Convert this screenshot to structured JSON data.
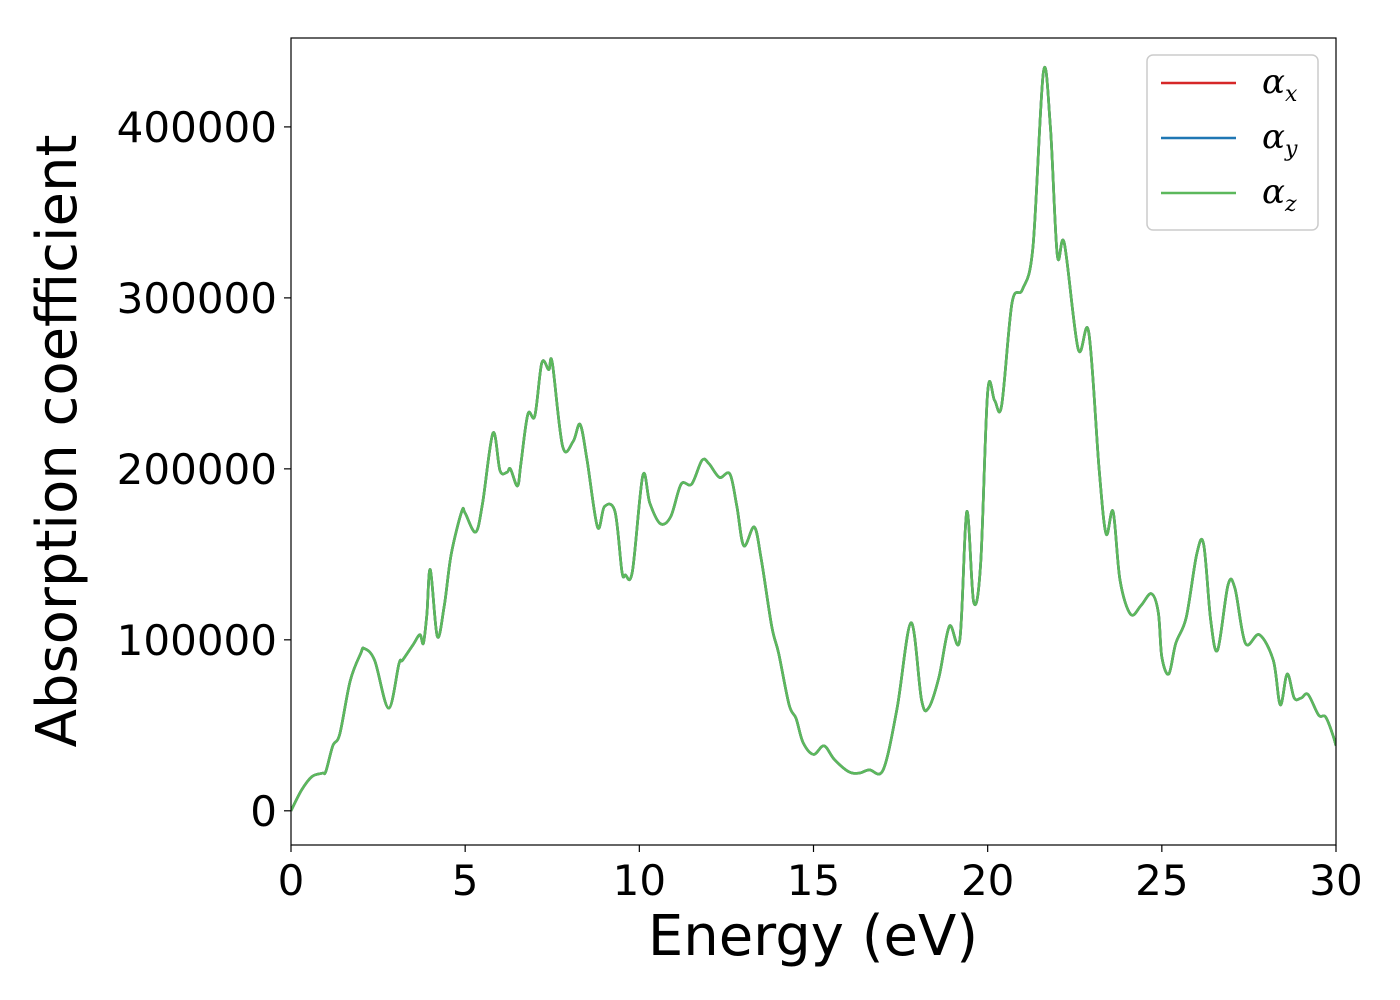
{
  "chart_data": {
    "type": "line",
    "title": "",
    "xlabel": "Energy (eV)",
    "ylabel": "Absorption coefficient",
    "xlim": [
      0,
      30
    ],
    "ylim": [
      -20000,
      452000
    ],
    "xticks": [
      0,
      5,
      10,
      15,
      20,
      25,
      30
    ],
    "xtick_labels": [
      "0",
      "5",
      "10",
      "15",
      "20",
      "25",
      "30"
    ],
    "yticks": [
      0,
      100000,
      200000,
      300000,
      400000
    ],
    "ytick_labels": [
      "0",
      "100000",
      "200000",
      "300000",
      "400000"
    ],
    "grid": false,
    "legend_position": "top-right",
    "x": [
      0,
      0.3,
      0.6,
      0.9,
      1.0,
      1.2,
      1.4,
      1.7,
      2.0,
      2.1,
      2.4,
      2.8,
      3.1,
      3.2,
      3.5,
      3.7,
      3.8,
      3.9,
      4.0,
      4.2,
      4.4,
      4.6,
      4.9,
      5.0,
      5.3,
      5.5,
      5.8,
      6.0,
      6.2,
      6.3,
      6.5,
      6.6,
      6.8,
      7.0,
      7.2,
      7.4,
      7.5,
      7.8,
      8.1,
      8.3,
      8.5,
      8.8,
      9.0,
      9.3,
      9.5,
      9.6,
      9.8,
      10.1,
      10.3,
      10.6,
      10.9,
      11.2,
      11.5,
      11.8,
      12.0,
      12.3,
      12.6,
      12.8,
      13.0,
      13.3,
      13.5,
      13.8,
      14.0,
      14.3,
      14.5,
      14.7,
      15.0,
      15.3,
      15.6,
      16.0,
      16.3,
      16.6,
      17.0,
      17.4,
      17.8,
      18.1,
      18.3,
      18.6,
      18.9,
      19.2,
      19.4,
      19.6,
      19.8,
      20.0,
      20.2,
      20.4,
      20.7,
      21.0,
      21.3,
      21.6,
      21.8,
      22.0,
      22.2,
      22.6,
      22.9,
      23.2,
      23.4,
      23.6,
      23.8,
      24.1,
      24.4,
      24.7,
      24.9,
      25.0,
      25.2,
      25.4,
      25.7,
      26.0,
      26.2,
      26.4,
      26.6,
      26.9,
      27.1,
      27.4,
      27.8,
      28.2,
      28.4,
      28.6,
      28.8,
      29.0,
      29.2,
      29.5,
      29.7,
      29.9,
      30.0
    ],
    "y": [
      0,
      12000,
      20000,
      22000,
      23000,
      38000,
      45000,
      76000,
      92000,
      95000,
      88000,
      60000,
      86000,
      88000,
      97000,
      103000,
      98000,
      115000,
      141000,
      102000,
      120000,
      150000,
      175000,
      174000,
      163000,
      180000,
      221000,
      199000,
      198000,
      200000,
      190000,
      203000,
      232000,
      231000,
      262000,
      258000,
      262000,
      213000,
      216000,
      226000,
      205000,
      166000,
      178000,
      175000,
      140000,
      138000,
      140000,
      196000,
      180000,
      168000,
      172000,
      191000,
      191000,
      205000,
      203000,
      195000,
      197000,
      178000,
      155000,
      166000,
      147000,
      108000,
      92000,
      62000,
      54000,
      40000,
      33000,
      38000,
      30000,
      23000,
      22000,
      24000,
      24000,
      60000,
      110000,
      65000,
      60000,
      78000,
      108000,
      100000,
      175000,
      122000,
      145000,
      245000,
      240000,
      237000,
      297000,
      305000,
      330000,
      432000,
      400000,
      325000,
      332000,
      270000,
      280000,
      200000,
      162000,
      175000,
      135000,
      115000,
      120000,
      127000,
      116000,
      90000,
      80000,
      98000,
      113000,
      150000,
      156000,
      112000,
      94000,
      132000,
      130000,
      98000,
      103000,
      88000,
      62000,
      80000,
      66000,
      66000,
      68000,
      56000,
      55000,
      45000,
      38000
    ],
    "series": [
      {
        "name": "α_x",
        "color": "#d62728"
      },
      {
        "name": "α_y",
        "color": "#1f77b4"
      },
      {
        "name": "α_z",
        "color": "#5cb85c"
      }
    ]
  },
  "legend": {
    "items": [
      {
        "symbol": "α",
        "sub": "x",
        "color": "#d62728"
      },
      {
        "symbol": "α",
        "sub": "y",
        "color": "#1f77b4"
      },
      {
        "symbol": "α",
        "sub": "z",
        "color": "#5cb85c"
      }
    ]
  }
}
